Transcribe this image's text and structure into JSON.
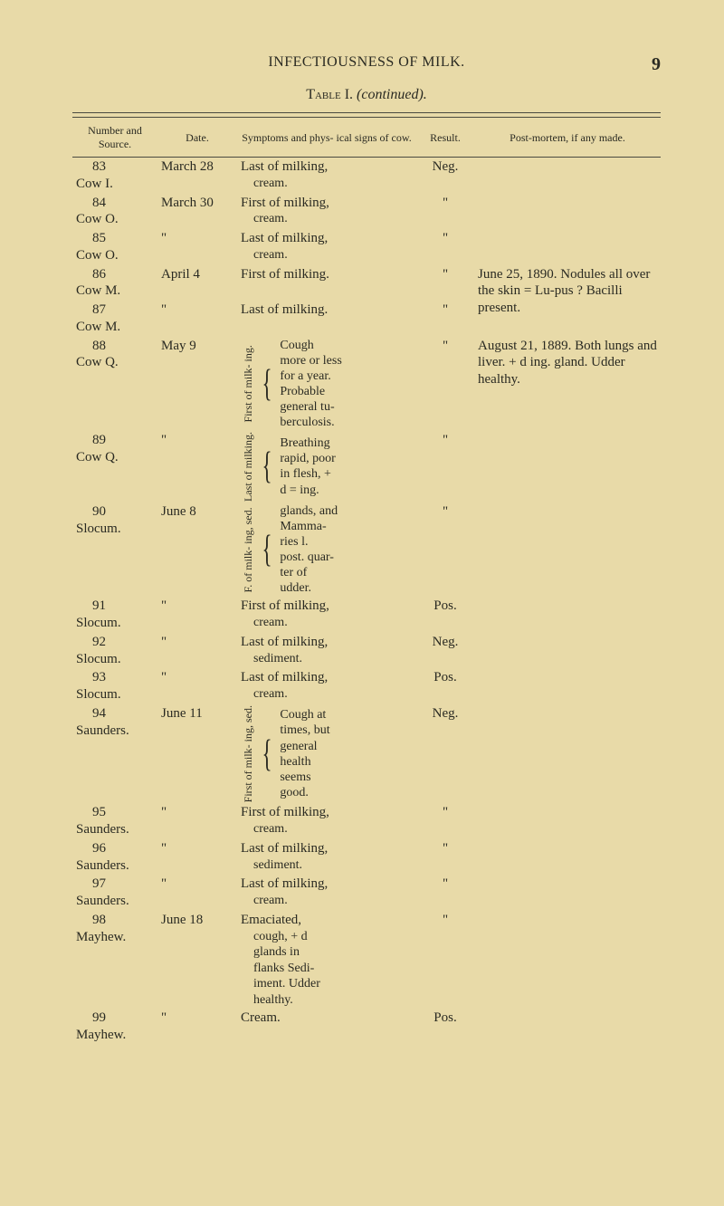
{
  "page": {
    "running_head": "INFECTIOUSNESS OF MILK.",
    "page_number": "9",
    "table_caption_sc": "Table",
    "table_caption_num": " I. ",
    "table_caption_it": "(continued).",
    "columns": {
      "source": "Number and\nSource.",
      "date": "Date.",
      "symptoms": "Symptoms and phys-\nical signs of cow.",
      "result": "Result.",
      "postmortem": "Post-mortem, if any made."
    }
  },
  "rows": {
    "r83": {
      "num": "83",
      "source": "Cow I.",
      "date": "March 28",
      "symp": "Last of milking,",
      "symp2": "cream.",
      "result": "Neg."
    },
    "r84": {
      "num": "84",
      "source": "Cow O.",
      "date": "March 30",
      "symp": "First of milking,",
      "symp2": "cream.",
      "result": "\""
    },
    "r85": {
      "num": "85",
      "source": "Cow O.",
      "date": "\"",
      "symp": "Last of milking,",
      "symp2": "cream.",
      "result": "\""
    },
    "r86": {
      "num": "86",
      "source": "Cow M.",
      "date": "April 4",
      "symp": "First of milking.",
      "result": "\"",
      "post": "June 25, 1890.   Nodules all over the skin = Lu-pus ?   Bacilli present."
    },
    "r87": {
      "num": "87",
      "source": "Cow M.",
      "date": "\"",
      "symp": "Last of milking.",
      "result": "\""
    },
    "r88": {
      "num": "88",
      "source": "Cow Q.",
      "date": "May 9",
      "brace_label": "First of milk-\ning.",
      "brace_lines": [
        "Cough",
        "more or less",
        "for a year.",
        "Probable",
        "general tu-",
        "berculosis."
      ],
      "result": "\"",
      "post": "August 21, 1889.  Both lungs and liver.  + d ing.   gland.     Udder healthy."
    },
    "r89": {
      "num": "89",
      "source": "Cow Q.",
      "date": "\"",
      "brace_label": "Last of\nmilking.",
      "brace_lines": [
        "Breathing",
        "rapid, poor",
        "in flesh, +",
        "d = ing."
      ],
      "result": "\""
    },
    "r90": {
      "num": "90",
      "source": "Slocum.",
      "date": "June 8",
      "brace_label": "F. of milk-\ning, sed.",
      "brace_lines": [
        "glands, and",
        "Mamma-",
        "ries l.",
        "post. quar-",
        "ter of",
        "udder."
      ],
      "result": "\""
    },
    "r91": {
      "num": "91",
      "source": "Slocum.",
      "date": "\"",
      "symp": "First of milking,",
      "symp2": "cream.",
      "result": "Pos."
    },
    "r92": {
      "num": "92",
      "source": "Slocum.",
      "date": "\"",
      "symp": "Last of milking,",
      "symp2": "sediment.",
      "result": "Neg."
    },
    "r93": {
      "num": "93",
      "source": "Slocum.",
      "date": "\"",
      "symp": "Last of milking,",
      "symp2": "cream.",
      "result": "Pos."
    },
    "r94": {
      "num": "94",
      "source": "Saunders.",
      "date": "June 11",
      "brace_label": "First of milk-\ning, sed.",
      "brace_lines": [
        "Cough at",
        "times, but",
        "general",
        "health",
        "seems",
        "good."
      ],
      "result": "Neg."
    },
    "r95": {
      "num": "95",
      "source": "Saunders.",
      "date": "\"",
      "symp": "First of milking,",
      "symp2": "cream.",
      "result": "\""
    },
    "r96": {
      "num": "96",
      "source": "Saunders.",
      "date": "\"",
      "symp": "Last of milking,",
      "symp2": "sediment.",
      "result": "\""
    },
    "r97": {
      "num": "97",
      "source": "Saunders.",
      "date": "\"",
      "symp": "Last of milking,",
      "symp2": "cream.",
      "result": "\""
    },
    "r98": {
      "num": "98",
      "source": "Mayhew.",
      "date": "June 18",
      "symp": "Emaciated,",
      "note_lines": [
        "cough, + d",
        "glands in",
        "flanks  Sedi-",
        "iment.  Udder",
        "healthy."
      ],
      "result": "\""
    },
    "r99": {
      "num": "99",
      "source": "Mayhew.",
      "date": "\"",
      "symp": "Cream.",
      "result": "Pos."
    }
  }
}
